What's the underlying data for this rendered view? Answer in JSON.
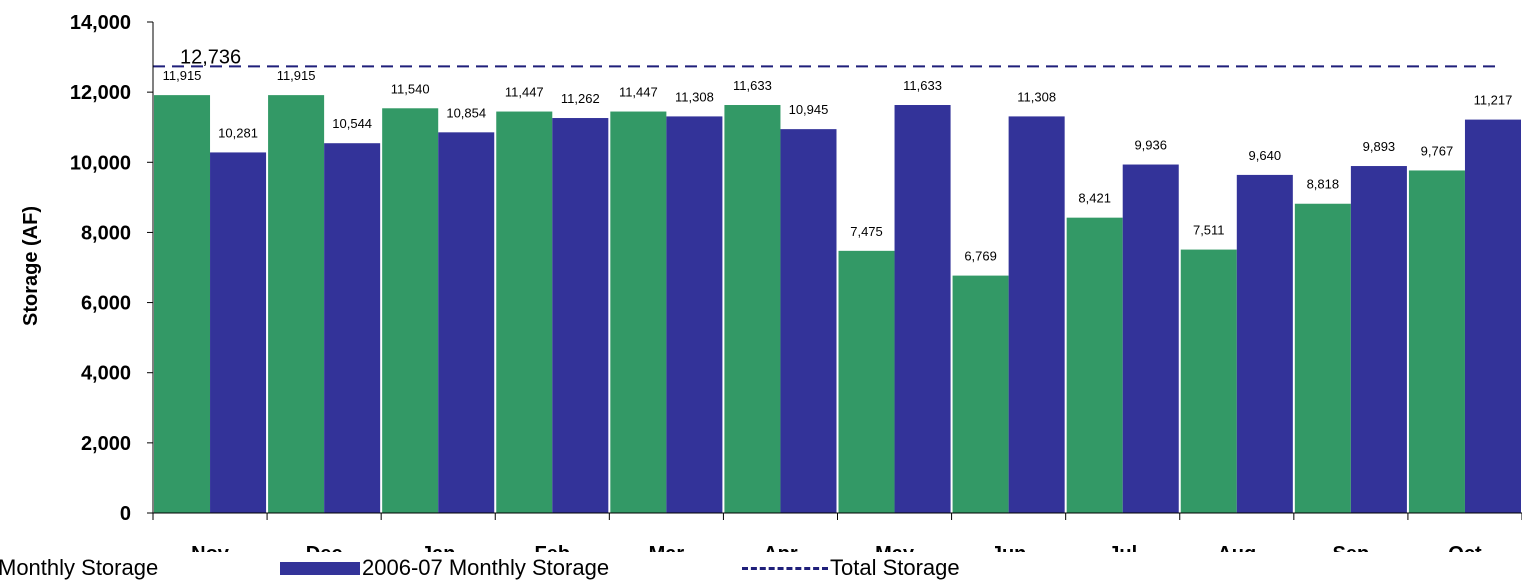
{
  "chart_data": {
    "type": "bar",
    "ylabel": "Storage (AF)",
    "ylim": [
      0,
      14000
    ],
    "yticks": [
      "0",
      "2,000",
      "4,000",
      "6,000",
      "8,000",
      "10,000",
      "12,000",
      "14,000"
    ],
    "categories": [
      "Nov",
      "Dec",
      "Jan",
      "Feb",
      "Mar",
      "Apr",
      "May",
      "Jun",
      "Jul",
      "Aug",
      "Sep",
      "Oct"
    ],
    "series": [
      {
        "name": "Monthly Storage",
        "color": "#339966",
        "values": [
          11915,
          11915,
          11540,
          11447,
          11447,
          11633,
          7475,
          6769,
          8421,
          7511,
          8818,
          9767
        ],
        "labels": [
          "11,915",
          "11,915",
          "11,540",
          "11,447",
          "11,447",
          "11,633",
          "7,475",
          "6,769",
          "8,421",
          "7,511",
          "8,818",
          "9,767"
        ]
      },
      {
        "name": "2006-07 Monthly Storage",
        "color": "#333399",
        "values": [
          10281,
          10544,
          10854,
          11262,
          11308,
          10945,
          11633,
          11308,
          9936,
          9640,
          9893,
          11217
        ],
        "labels": [
          "10,281",
          "10,544",
          "10,854",
          "11,262",
          "11,308",
          "10,945",
          "11,633",
          "11,308",
          "9,936",
          "9,640",
          "9,893",
          "11,217"
        ]
      }
    ],
    "reference_line": {
      "name": "Total Storage",
      "value": 12736,
      "label": "12,736",
      "color": "#1f1f7a",
      "style": "dashed"
    },
    "legend_position": "bottom",
    "grid": false
  }
}
